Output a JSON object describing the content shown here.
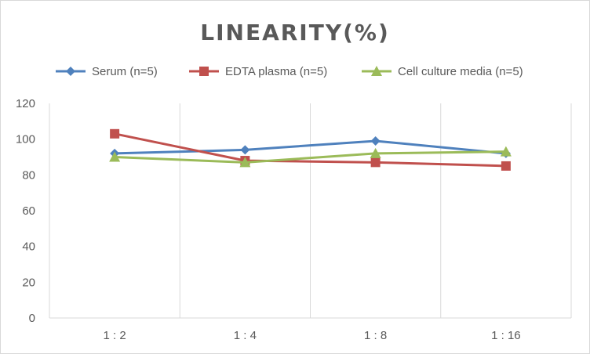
{
  "chart_data": {
    "type": "line",
    "title": "LINEARITY(%)",
    "categories": [
      "1:2",
      "1:4",
      "1:8",
      "1:16"
    ],
    "yticks": [
      "0",
      "20",
      "40",
      "60",
      "80",
      "100",
      "120"
    ],
    "ylim": [
      0,
      120
    ],
    "grid": "vertical",
    "legend_position": "top",
    "series": [
      {
        "name": "Serum (n=5)",
        "values": [
          92,
          94,
          99,
          92
        ],
        "color": "#4f81bd",
        "marker": "diamond"
      },
      {
        "name": "EDTA plasma (n=5)",
        "values": [
          103,
          88,
          87,
          85
        ],
        "color": "#c0504d",
        "marker": "square"
      },
      {
        "name": "Cell culture media (n=5)",
        "values": [
          90,
          87,
          92,
          93
        ],
        "color": "#9bbb59",
        "marker": "triangle"
      }
    ]
  }
}
